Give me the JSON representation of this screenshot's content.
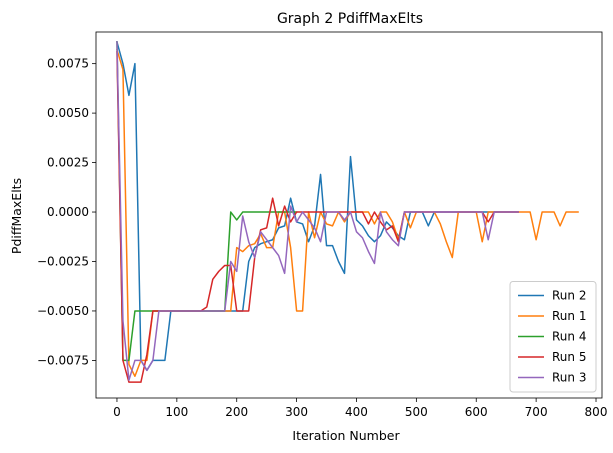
{
  "chart_data": {
    "type": "line",
    "title": "Graph 2 PdiffMaxElts",
    "xlabel": "Iteration Number",
    "ylabel": "PdiffMaxElts",
    "xlim": [
      -35,
      810
    ],
    "ylim": [
      -0.0094,
      0.0091
    ],
    "xticks": [
      0,
      100,
      200,
      300,
      400,
      500,
      600,
      700,
      800
    ],
    "xtick_labels": [
      "0",
      "100",
      "200",
      "300",
      "400",
      "500",
      "600",
      "700",
      "800"
    ],
    "yticks": [
      -0.0075,
      -0.005,
      -0.0025,
      0.0,
      0.0025,
      0.005,
      0.0075
    ],
    "ytick_labels": [
      "−0.0075",
      "−0.0050",
      "−0.0025",
      "0.0000",
      "0.0025",
      "0.0050",
      "0.0075"
    ],
    "legend_position": "lower-right",
    "series": [
      {
        "name": "Run 2",
        "color": "#1f77b4",
        "x": [
          0,
          10,
          20,
          30,
          40,
          50,
          60,
          70,
          80,
          90,
          100,
          110,
          120,
          130,
          140,
          150,
          160,
          170,
          180,
          190,
          200,
          210,
          220,
          230,
          240,
          250,
          260,
          270,
          280,
          290,
          300,
          310,
          320,
          330,
          340,
          350,
          360,
          370,
          380,
          390,
          400,
          410,
          420,
          430,
          440,
          450,
          460,
          470,
          480,
          490,
          500,
          510,
          520,
          530,
          540,
          550,
          560,
          570,
          580,
          590,
          600,
          610,
          620,
          630,
          640,
          650,
          660,
          670
        ],
        "y": [
          0.0086,
          0.0075,
          0.0059,
          0.0075,
          -0.0075,
          -0.008,
          -0.0075,
          -0.0075,
          -0.0075,
          -0.005,
          -0.005,
          -0.005,
          -0.005,
          -0.005,
          -0.005,
          -0.005,
          -0.005,
          -0.005,
          -0.005,
          -0.005,
          -0.005,
          -0.005,
          -0.0025,
          -0.0018,
          -0.0016,
          -0.0015,
          -0.0014,
          -0.0008,
          -0.0007,
          0.0007,
          -0.0005,
          -0.0006,
          -0.0015,
          -0.0007,
          0.0019,
          -0.0017,
          -0.0017,
          -0.0025,
          -0.0031,
          0.0028,
          -0.0004,
          -0.0007,
          -0.0012,
          -0.0015,
          -0.0012,
          -0.0005,
          -0.0008,
          -0.0012,
          -0.0014,
          0.0,
          0.0,
          0.0,
          -0.0007,
          0.0,
          0.0,
          0.0,
          0.0,
          0.0,
          0.0,
          0.0,
          0.0,
          0.0,
          0.0,
          0.0,
          0.0,
          0.0,
          0.0,
          0.0
        ]
      },
      {
        "name": "Run 1",
        "color": "#ff7f0e",
        "x": [
          0,
          10,
          20,
          30,
          40,
          50,
          60,
          70,
          80,
          90,
          100,
          110,
          120,
          130,
          140,
          150,
          160,
          170,
          180,
          190,
          200,
          210,
          220,
          230,
          240,
          250,
          260,
          270,
          280,
          290,
          300,
          310,
          320,
          330,
          340,
          350,
          360,
          370,
          380,
          390,
          400,
          410,
          420,
          430,
          440,
          450,
          460,
          470,
          480,
          490,
          500,
          510,
          520,
          530,
          540,
          550,
          560,
          570,
          580,
          590,
          600,
          610,
          620,
          630,
          640,
          650,
          660,
          670,
          680,
          690,
          700,
          710,
          720,
          730,
          740,
          750,
          760,
          770
        ],
        "y": [
          0.0082,
          0.0072,
          -0.0077,
          -0.0083,
          -0.0075,
          -0.0075,
          -0.005,
          -0.005,
          -0.005,
          -0.005,
          -0.005,
          -0.005,
          -0.005,
          -0.005,
          -0.005,
          -0.005,
          -0.005,
          -0.005,
          -0.005,
          -0.005,
          -0.0018,
          -0.002,
          -0.0017,
          -0.0016,
          -0.0011,
          -0.0018,
          -0.0018,
          0.0,
          0.0,
          -0.0018,
          -0.005,
          -0.005,
          0.0,
          -0.0013,
          0.0,
          -0.0006,
          -0.0007,
          0.0,
          -0.0005,
          0.0,
          0.0,
          0.0,
          0.0,
          -0.0006,
          0.0,
          0.0,
          -0.0005,
          -0.0014,
          0.0,
          -0.0008,
          0.0,
          0.0,
          0.0,
          0.0,
          -0.0006,
          -0.0015,
          -0.0023,
          0.0,
          0.0,
          0.0,
          0.0,
          -0.0015,
          0.0,
          0.0,
          0.0,
          0.0,
          0.0,
          0.0,
          0.0,
          0.0,
          -0.0014,
          0.0,
          0.0,
          0.0,
          -0.0007,
          0.0,
          0.0,
          0.0
        ]
      },
      {
        "name": "Run 4",
        "color": "#2ca02c",
        "x": [
          0,
          10,
          20,
          30,
          40,
          50,
          60,
          70,
          80,
          90,
          100,
          110,
          120,
          130,
          140,
          150,
          160,
          170,
          180,
          190,
          200,
          210,
          220,
          230,
          240,
          250,
          260,
          270,
          280,
          290,
          300
        ],
        "y": [
          0.0086,
          -0.0075,
          -0.0075,
          -0.005,
          -0.005,
          -0.005,
          -0.005,
          -0.005,
          -0.005,
          -0.005,
          -0.005,
          -0.005,
          -0.005,
          -0.005,
          -0.005,
          -0.005,
          -0.005,
          -0.005,
          -0.005,
          0.0,
          -0.0004,
          0.0,
          0.0,
          0.0,
          0.0,
          0.0,
          0.0,
          0.0,
          0.0,
          0.0,
          0.0
        ]
      },
      {
        "name": "Run 5",
        "color": "#d62728",
        "x": [
          0,
          10,
          20,
          30,
          40,
          50,
          60,
          70,
          80,
          90,
          100,
          110,
          120,
          130,
          140,
          150,
          160,
          170,
          180,
          190,
          200,
          210,
          220,
          230,
          240,
          250,
          260,
          270,
          280,
          290,
          300,
          310,
          320,
          330,
          340,
          350,
          360,
          370,
          380,
          390,
          400,
          410,
          420,
          430,
          440,
          450,
          460,
          470,
          480,
          490,
          500,
          510,
          520,
          530,
          540,
          550,
          560,
          570,
          580,
          590,
          600,
          610,
          620,
          630,
          640,
          650,
          660,
          670
        ],
        "y": [
          0.0081,
          -0.0075,
          -0.0086,
          -0.0086,
          -0.0086,
          -0.0072,
          -0.005,
          -0.005,
          -0.005,
          -0.005,
          -0.005,
          -0.005,
          -0.005,
          -0.005,
          -0.005,
          -0.0048,
          -0.0034,
          -0.003,
          -0.0027,
          -0.0027,
          -0.005,
          -0.005,
          -0.005,
          -0.0023,
          -0.0009,
          -0.0008,
          0.0007,
          -0.0007,
          0.0003,
          -0.0005,
          0.0,
          0.0,
          0.0,
          0.0,
          0.0,
          0.0,
          0.0,
          0.0,
          0.0,
          0.0,
          0.0,
          0.0,
          -0.0006,
          0.0,
          -0.0005,
          -0.0009,
          -0.0007,
          -0.0015,
          0.0,
          0.0,
          0.0,
          0.0,
          0.0,
          0.0,
          0.0,
          0.0,
          0.0,
          0.0,
          0.0,
          0.0,
          0.0,
          0.0,
          -0.0005,
          0.0,
          0.0,
          0.0,
          0.0,
          0.0
        ]
      },
      {
        "name": "Run 3",
        "color": "#9467bd",
        "x": [
          0,
          10,
          20,
          30,
          40,
          50,
          60,
          70,
          80,
          90,
          100,
          110,
          120,
          130,
          140,
          150,
          160,
          170,
          180,
          190,
          200,
          210,
          220,
          230,
          240,
          250,
          260,
          270,
          280,
          290,
          300,
          310,
          320,
          330,
          340,
          350,
          360,
          370,
          380,
          390,
          400,
          410,
          420,
          430,
          440,
          450,
          460,
          470,
          480,
          490,
          500,
          510,
          520,
          530,
          540,
          550,
          560,
          570,
          580,
          590,
          600,
          610,
          620,
          630,
          640,
          650,
          660,
          670
        ],
        "y": [
          0.0086,
          -0.0055,
          -0.0085,
          -0.0075,
          -0.0075,
          -0.008,
          -0.0075,
          -0.005,
          -0.005,
          -0.005,
          -0.005,
          -0.005,
          -0.005,
          -0.005,
          -0.005,
          -0.005,
          -0.005,
          -0.005,
          -0.005,
          -0.0025,
          -0.003,
          -0.0002,
          -0.0015,
          -0.0023,
          -0.001,
          -0.0014,
          -0.0018,
          -0.0022,
          -0.0031,
          0.0003,
          -0.0005,
          0.0,
          -0.0004,
          -0.0008,
          -0.0015,
          0.0,
          0.0,
          0.0,
          -0.0004,
          0.0,
          -0.001,
          -0.0013,
          -0.002,
          -0.0026,
          0.0,
          -0.001,
          -0.0014,
          -0.0017,
          0.0,
          0.0,
          0.0,
          0.0,
          0.0,
          0.0,
          0.0,
          0.0,
          0.0,
          0.0,
          0.0,
          0.0,
          0.0,
          0.0,
          -0.0014,
          0.0,
          0.0,
          0.0,
          0.0,
          0.0
        ]
      }
    ]
  }
}
